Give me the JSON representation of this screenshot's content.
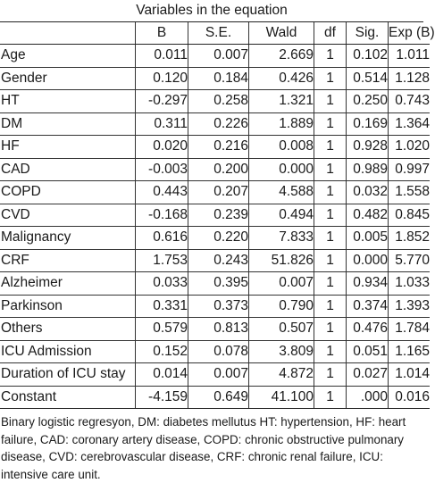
{
  "caption": "Variables in the equation",
  "headers": {
    "variable": "",
    "b": "B",
    "se": "S.E.",
    "wald": "Wald",
    "df": "df",
    "sig": "Sig.",
    "exp": "Exp (B)"
  },
  "rows": [
    {
      "name": "Age",
      "b": "0.011",
      "se": "0.007",
      "wald": "2.669",
      "df": "1",
      "sig": "0.102",
      "exp": "1.011"
    },
    {
      "name": "Gender",
      "b": "0.120",
      "se": "0.184",
      "wald": "0.426",
      "df": "1",
      "sig": "0.514",
      "exp": "1.128"
    },
    {
      "name": "HT",
      "b": "-0.297",
      "se": "0.258",
      "wald": "1.321",
      "df": "1",
      "sig": "0.250",
      "exp": "0.743"
    },
    {
      "name": "DM",
      "b": "0.311",
      "se": "0.226",
      "wald": "1.889",
      "df": "1",
      "sig": "0.169",
      "exp": "1.364"
    },
    {
      "name": "HF",
      "b": "0.020",
      "se": "0.216",
      "wald": "0.008",
      "df": "1",
      "sig": "0.928",
      "exp": "1.020"
    },
    {
      "name": "CAD",
      "b": "-0.003",
      "se": "0.200",
      "wald": "0.000",
      "df": "1",
      "sig": "0.989",
      "exp": "0.997"
    },
    {
      "name": "COPD",
      "b": "0.443",
      "se": "0.207",
      "wald": "4.588",
      "df": "1",
      "sig": "0.032",
      "exp": "1.558"
    },
    {
      "name": "CVD",
      "b": "-0.168",
      "se": "0.239",
      "wald": "0.494",
      "df": "1",
      "sig": "0.482",
      "exp": "0.845"
    },
    {
      "name": "Malignancy",
      "b": "0.616",
      "se": "0.220",
      "wald": "7.833",
      "df": "1",
      "sig": "0.005",
      "exp": "1.852"
    },
    {
      "name": "CRF",
      "b": "1.753",
      "se": "0.243",
      "wald": "51.826",
      "df": "1",
      "sig": "0.000",
      "exp": "5.770"
    },
    {
      "name": "Alzheimer",
      "b": "0.033",
      "se": "0.395",
      "wald": "0.007",
      "df": "1",
      "sig": "0.934",
      "exp": "1.033"
    },
    {
      "name": "Parkinson",
      "b": "0.331",
      "se": "0.373",
      "wald": "0.790",
      "df": "1",
      "sig": "0.374",
      "exp": "1.393"
    },
    {
      "name": "Others",
      "b": "0.579",
      "se": "0.813",
      "wald": "0.507",
      "df": "1",
      "sig": "0.476",
      "exp": "1.784"
    },
    {
      "name": "ICU Admission",
      "b": "0.152",
      "se": "0.078",
      "wald": "3.809",
      "df": "1",
      "sig": "0.051",
      "exp": "1.165"
    },
    {
      "name": "Duration of ICU stay",
      "b": "0.014",
      "se": "0.007",
      "wald": "4.872",
      "df": "1",
      "sig": "0.027",
      "exp": "1.014"
    },
    {
      "name": "Constant",
      "b": "-4.159",
      "se": "0.649",
      "wald": "41.100",
      "df": "1",
      "sig": ".000",
      "exp": "0.016"
    }
  ],
  "footnote": "Binary logistic regresyon, DM: diabetes mellutus HT: hypertension, HF: heart failure, CAD: coronary artery disease, COPD: chronic obstructive pulmonary disease, CVD: cerebrovascular disease, CRF: chronic renal failure, ICU: intensive care unit."
}
